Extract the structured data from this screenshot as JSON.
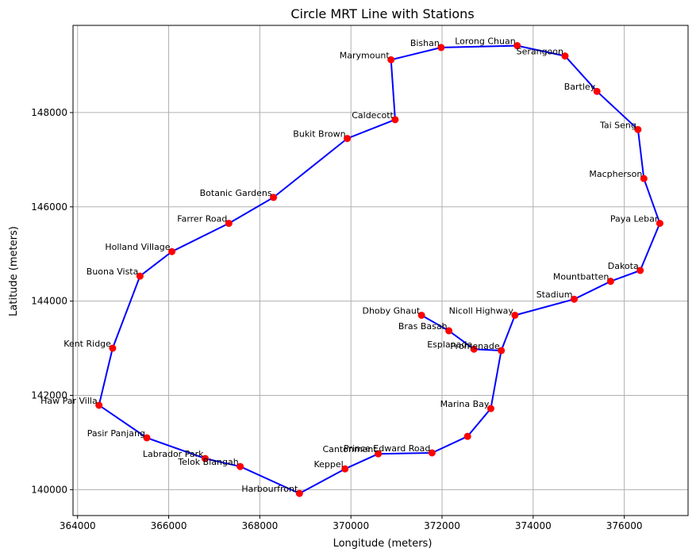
{
  "chart_data": {
    "type": "line",
    "title": "Circle MRT Line with Stations",
    "xlabel": "Longitude (meters)",
    "ylabel": "Latitude (meters)",
    "xlim": [
      363900,
      377400
    ],
    "ylim": [
      139450,
      149850
    ],
    "xticks": [
      364000,
      366000,
      368000,
      370000,
      372000,
      374000,
      376000
    ],
    "yticks": [
      140000,
      142000,
      144000,
      146000,
      148000
    ],
    "grid": true,
    "line_color": "#0000ff",
    "marker_color": "#ff0000",
    "route": [
      {
        "x": 371550,
        "y": 143700
      },
      {
        "x": 372150,
        "y": 143370
      },
      {
        "x": 372700,
        "y": 142980
      },
      {
        "x": 373300,
        "y": 142950
      },
      {
        "x": 373600,
        "y": 143700
      },
      {
        "x": 374900,
        "y": 144040
      },
      {
        "x": 375700,
        "y": 144420
      },
      {
        "x": 376350,
        "y": 144650
      },
      {
        "x": 376780,
        "y": 145650
      },
      {
        "x": 376430,
        "y": 146600
      },
      {
        "x": 376300,
        "y": 147640
      },
      {
        "x": 375400,
        "y": 148450
      },
      {
        "x": 374700,
        "y": 149200
      },
      {
        "x": 373650,
        "y": 149420
      },
      {
        "x": 371980,
        "y": 149380
      },
      {
        "x": 370880,
        "y": 149120
      },
      {
        "x": 370970,
        "y": 147850
      },
      {
        "x": 369920,
        "y": 147450
      },
      {
        "x": 368300,
        "y": 146200
      },
      {
        "x": 367320,
        "y": 145650
      },
      {
        "x": 366070,
        "y": 145050
      },
      {
        "x": 365370,
        "y": 144530
      },
      {
        "x": 364770,
        "y": 143000
      },
      {
        "x": 364470,
        "y": 141790
      },
      {
        "x": 365520,
        "y": 141100
      },
      {
        "x": 366800,
        "y": 140660
      },
      {
        "x": 367570,
        "y": 140490
      },
      {
        "x": 368870,
        "y": 139920
      },
      {
        "x": 369870,
        "y": 140440
      },
      {
        "x": 370600,
        "y": 140760
      },
      {
        "x": 371780,
        "y": 140780
      },
      {
        "x": 372560,
        "y": 141130
      },
      {
        "x": 373070,
        "y": 141720
      },
      {
        "x": 373300,
        "y": 142950
      }
    ],
    "stations": [
      {
        "name": "Dhoby Ghaut",
        "x": 371550,
        "y": 143700
      },
      {
        "name": "Bras Basah",
        "x": 372150,
        "y": 143370
      },
      {
        "name": "Esplanade",
        "x": 372700,
        "y": 142980
      },
      {
        "name": "Promenade",
        "x": 373300,
        "y": 142950
      },
      {
        "name": "Nicoll Highway",
        "x": 373600,
        "y": 143700
      },
      {
        "name": "Stadium",
        "x": 374900,
        "y": 144040
      },
      {
        "name": "Mountbatten",
        "x": 375700,
        "y": 144420
      },
      {
        "name": "Dakota",
        "x": 376350,
        "y": 144650
      },
      {
        "name": "Paya Lebar",
        "x": 376780,
        "y": 145650
      },
      {
        "name": "Macpherson",
        "x": 376430,
        "y": 146600
      },
      {
        "name": "Tai Seng",
        "x": 376300,
        "y": 147640
      },
      {
        "name": "Bartley",
        "x": 375400,
        "y": 148450
      },
      {
        "name": "Serangoon",
        "x": 374700,
        "y": 149200
      },
      {
        "name": "Lorong Chuan",
        "x": 373650,
        "y": 149420
      },
      {
        "name": "Bishan",
        "x": 371980,
        "y": 149380
      },
      {
        "name": "Marymount",
        "x": 370880,
        "y": 149120
      },
      {
        "name": "Caldecott",
        "x": 370970,
        "y": 147850
      },
      {
        "name": "Bukit Brown",
        "x": 369920,
        "y": 147450
      },
      {
        "name": "Botanic Gardens",
        "x": 368300,
        "y": 146200
      },
      {
        "name": "Farrer Road",
        "x": 367320,
        "y": 145650
      },
      {
        "name": "Holland Village",
        "x": 366070,
        "y": 145050
      },
      {
        "name": "Buona Vista",
        "x": 365370,
        "y": 144530
      },
      {
        "name": "Kent Ridge",
        "x": 364770,
        "y": 143000
      },
      {
        "name": "Haw Par Villa",
        "x": 364470,
        "y": 141790
      },
      {
        "name": "Pasir Panjang",
        "x": 365520,
        "y": 141100
      },
      {
        "name": "Labrador Park",
        "x": 366800,
        "y": 140660
      },
      {
        "name": "Telok Blangah",
        "x": 367570,
        "y": 140490
      },
      {
        "name": "Harbourfront",
        "x": 368870,
        "y": 139920
      },
      {
        "name": "Keppel",
        "x": 369870,
        "y": 140440
      },
      {
        "name": "Cantonment",
        "x": 370600,
        "y": 140760
      },
      {
        "name": "Prince Edward Road",
        "x": 371780,
        "y": 140780
      },
      {
        "name": "Marina Bay",
        "x": 373070,
        "y": 141720
      },
      {
        "name": "",
        "x": 372560,
        "y": 141130
      }
    ]
  }
}
